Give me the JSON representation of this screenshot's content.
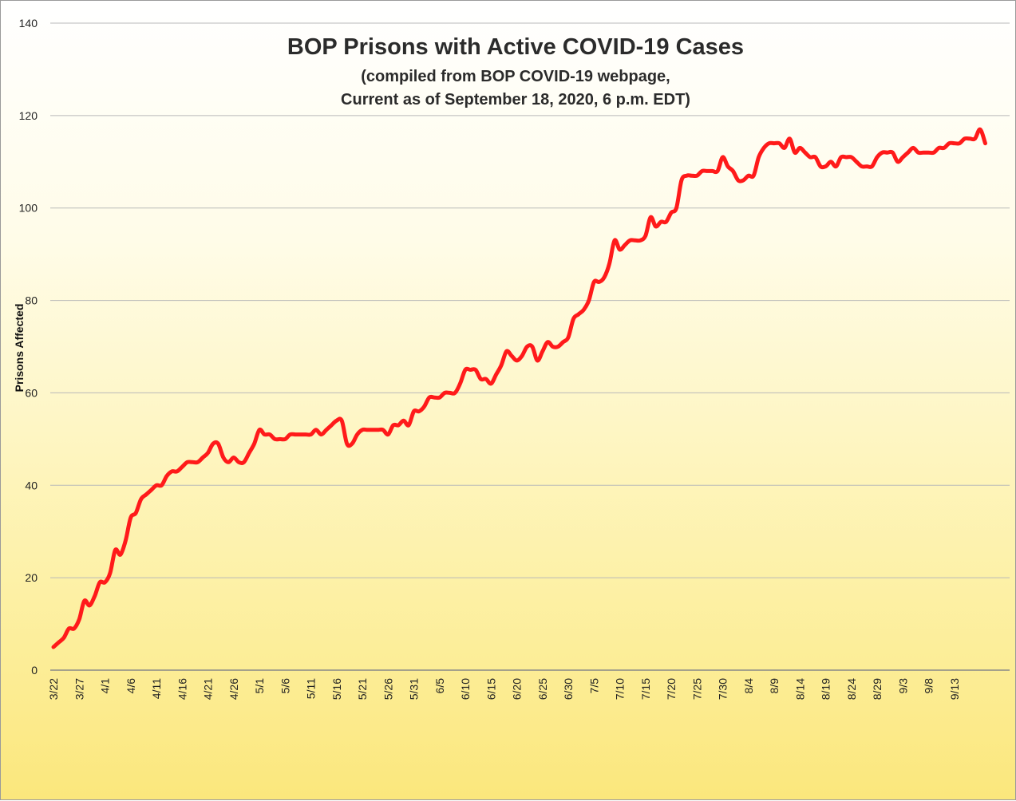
{
  "chart_data": {
    "type": "line",
    "title": "BOP Prisons with Active COVID-19 Cases",
    "subtitle_lines": [
      "(compiled from BOP COVID-19 webpage,",
      "Current as of September 18, 2020, 6 p.m. EDT)"
    ],
    "xlabel": "",
    "ylabel": "Prisons Affected",
    "ylim": [
      0,
      140
    ],
    "yticks": [
      0,
      20,
      40,
      60,
      80,
      100,
      120,
      140
    ],
    "xtick_labels": [
      "3/22",
      "3/27",
      "4/1",
      "4/6",
      "4/11",
      "4/16",
      "4/21",
      "4/26",
      "5/1",
      "5/6",
      "5/11",
      "5/16",
      "5/21",
      "5/26",
      "5/31",
      "6/5",
      "6/10",
      "6/15",
      "6/20",
      "6/25",
      "6/30",
      "7/5",
      "7/10",
      "7/15",
      "7/20",
      "7/25",
      "7/30",
      "8/4",
      "8/9",
      "8/14",
      "8/19",
      "8/24",
      "8/29",
      "9/3",
      "9/8",
      "9/13"
    ],
    "grid": true,
    "legend": "none",
    "start_date": "2020-03-22",
    "series": [
      {
        "color": "#ff1a1a",
        "values": [
          5,
          6,
          7,
          9,
          9,
          11,
          15,
          14,
          16,
          19,
          19,
          21,
          26,
          25,
          28,
          33,
          34,
          37,
          38,
          39,
          40,
          40,
          42,
          43,
          43,
          44,
          45,
          45,
          45,
          46,
          47,
          49,
          49,
          46,
          45,
          46,
          45,
          45,
          47,
          49,
          52,
          51,
          51,
          50,
          50,
          50,
          51,
          51,
          51,
          51,
          51,
          52,
          51,
          52,
          53,
          54,
          54,
          49,
          49,
          51,
          52,
          52,
          52,
          52,
          52,
          51,
          53,
          53,
          54,
          53,
          56,
          56,
          57,
          59,
          59,
          59,
          60,
          60,
          60,
          62,
          65,
          65,
          65,
          63,
          63,
          62,
          64,
          66,
          69,
          68,
          67,
          68,
          70,
          70,
          67,
          69,
          71,
          70,
          70,
          71,
          72,
          76,
          77,
          78,
          80,
          84,
          84,
          85,
          88,
          93,
          91,
          92,
          93,
          93,
          93,
          94,
          98,
          96,
          97,
          97,
          99,
          100,
          106,
          107,
          107,
          107,
          108,
          108,
          108,
          108,
          111,
          109,
          108,
          106,
          106,
          107,
          107,
          111,
          113,
          114,
          114,
          114,
          113,
          115,
          112,
          113,
          112,
          111,
          111,
          109,
          109,
          110,
          109,
          111,
          111,
          111,
          110,
          109,
          109,
          109,
          111,
          112,
          112,
          112,
          110,
          111,
          112,
          113,
          112,
          112,
          112,
          112,
          113,
          113,
          114,
          114,
          114,
          115,
          115,
          115,
          117,
          114
        ]
      }
    ]
  }
}
